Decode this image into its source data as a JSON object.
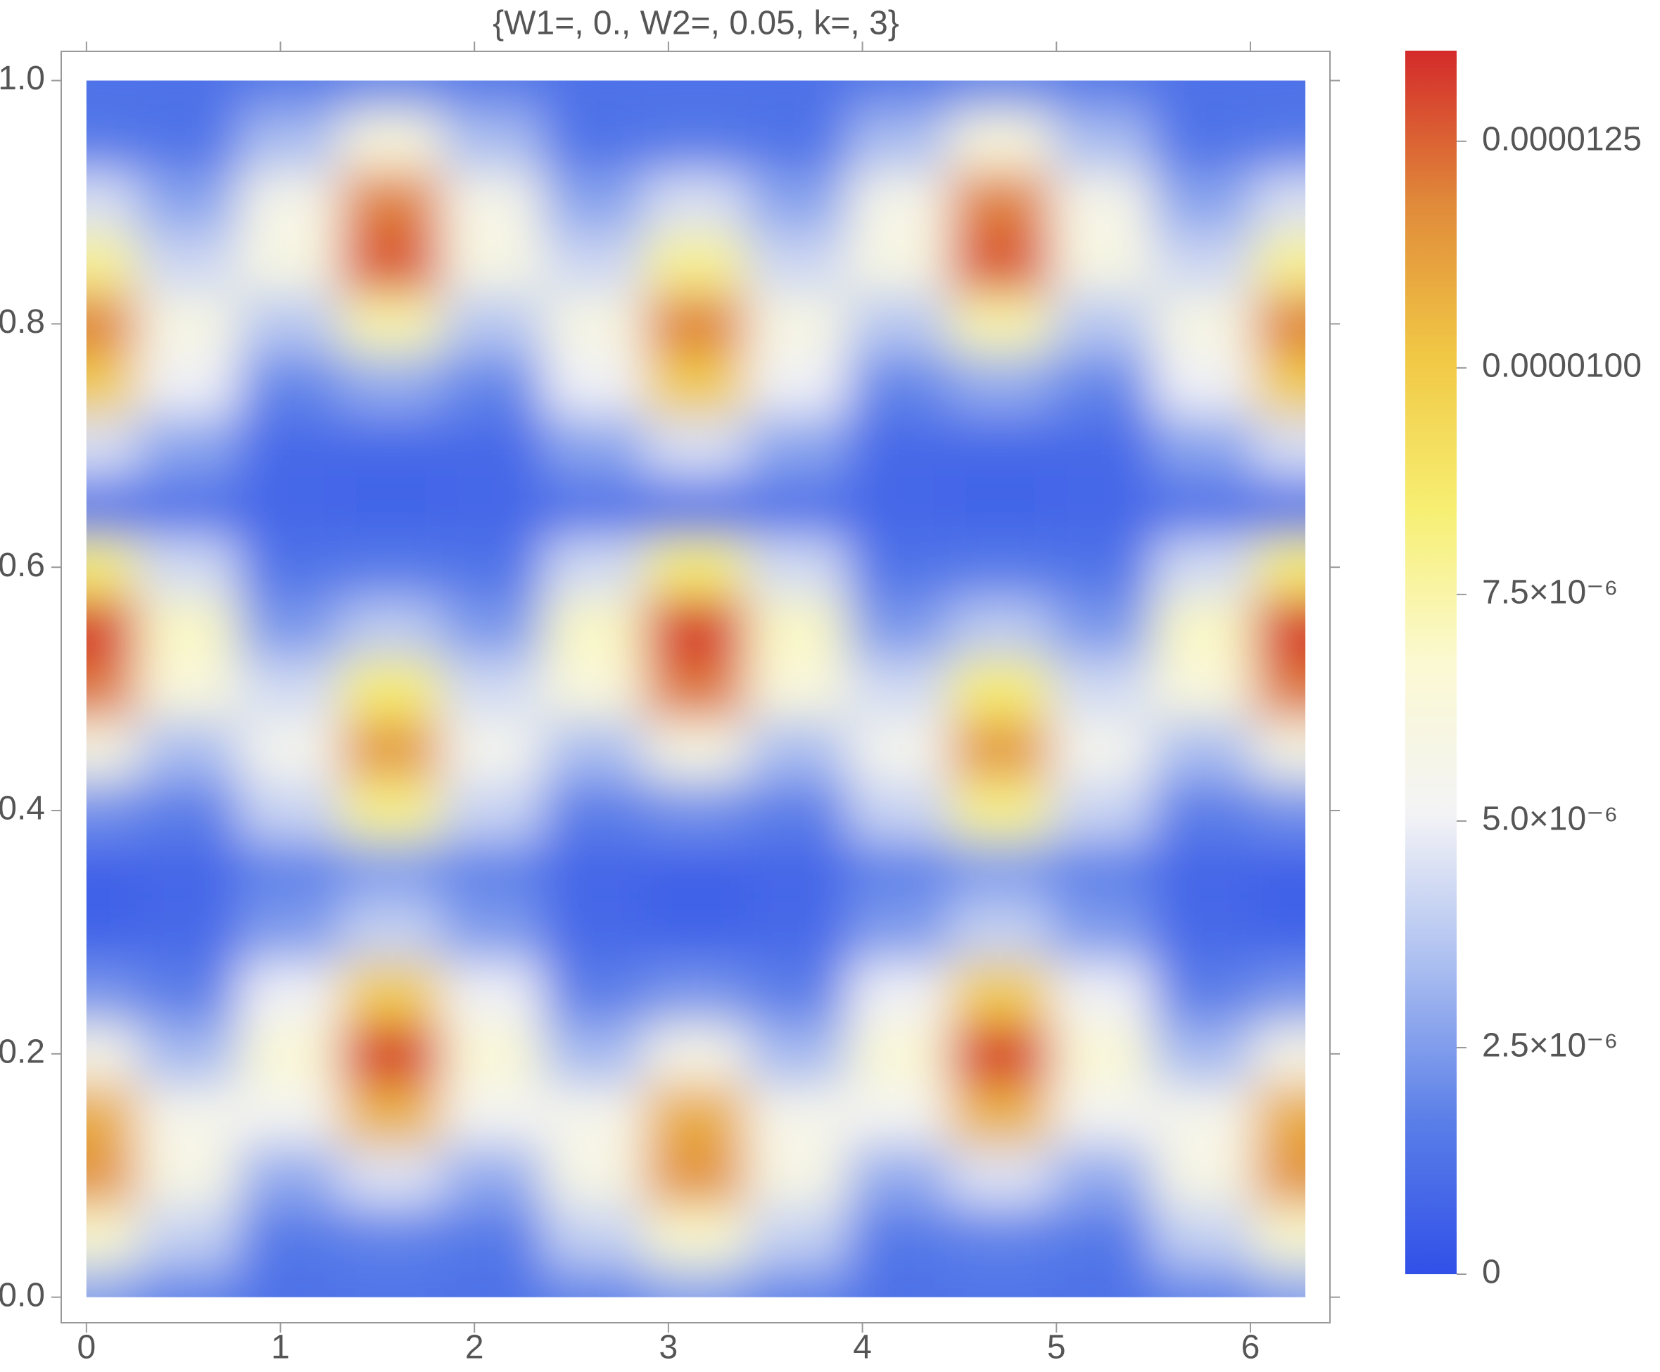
{
  "chart_data": {
    "type": "heatmap",
    "title": "{W1=, 0., W2=, 0.05, k=, 3}",
    "x": [
      0,
      0.5236,
      1.0472,
      1.5708,
      2.0944,
      2.618,
      3.1416,
      3.6652,
      4.1888,
      4.7124,
      5.236,
      5.7596,
      6.2832
    ],
    "y": [
      0,
      0.05,
      0.1,
      0.15,
      0.2,
      0.25,
      0.3,
      0.35,
      0.4,
      0.45,
      0.5,
      0.55,
      0.6,
      0.65,
      0.7,
      0.75,
      0.8,
      0.85,
      0.9,
      0.95,
      1.0
    ],
    "z": [
      [
        2.7e-06,
        1.9e-06,
        1.2e-06,
        1.3e-06,
        1.2e-06,
        1.9e-06,
        2.7e-06,
        1.9e-06,
        1.2e-06,
        1.3e-06,
        1.2e-06,
        1.9e-06,
        2.7e-06
      ],
      [
        6.8e-06,
        4e-06,
        1.5e-06,
        1.8e-06,
        1.5e-06,
        4e-06,
        6.8e-06,
        4e-06,
        1.5e-06,
        1.8e-06,
        1.5e-06,
        4e-06,
        6.8e-06
      ],
      [
        1.16e-05,
        5.9e-06,
        2.9e-06,
        4.6e-06,
        2.9e-06,
        5.9e-06,
        1.16e-05,
        5.9e-06,
        2.9e-06,
        4.6e-06,
        2.9e-06,
        5.9e-06,
        1.16e-05
      ],
      [
        1.09e-05,
        5.6e-06,
        5.3e-06,
        1.07e-05,
        5.3e-06,
        5.6e-06,
        1.09e-05,
        5.6e-06,
        5.3e-06,
        1.07e-05,
        5.3e-06,
        5.6e-06,
        1.09e-05
      ],
      [
        5.7e-06,
        3.3e-06,
        6.6e-06,
        1.33e-05,
        6.6e-06,
        3.3e-06,
        5.7e-06,
        3.3e-06,
        6.6e-06,
        1.33e-05,
        6.6e-06,
        3.3e-06,
        5.7e-06
      ],
      [
        2.3e-06,
        1.7e-06,
        5e-06,
        9.9e-06,
        5e-06,
        1.7e-06,
        2.3e-06,
        1.7e-06,
        5e-06,
        9.9e-06,
        5e-06,
        1.7e-06,
        2.3e-06
      ],
      [
        7e-07,
        9e-07,
        2.5e-06,
        4e-06,
        2.5e-06,
        9e-07,
        7e-07,
        9e-07,
        2.5e-06,
        4e-06,
        2.5e-06,
        9e-07,
        7e-07
      ],
      [
        6e-07,
        8e-07,
        1.8e-06,
        2.5e-06,
        1.8e-06,
        8e-07,
        6e-07,
        8e-07,
        1.8e-06,
        2.5e-06,
        1.8e-06,
        8e-07,
        6e-07
      ],
      [
        2.2e-06,
        1.7e-06,
        4.1e-06,
        8e-06,
        4.1e-06,
        1.7e-06,
        2.2e-06,
        1.7e-06,
        4.1e-06,
        8e-06,
        4.1e-06,
        1.7e-06,
        2.2e-06
      ],
      [
        6e-06,
        3.4e-06,
        5.5e-06,
        1.15e-05,
        5.5e-06,
        3.4e-06,
        6e-06,
        3.4e-06,
        5.5e-06,
        1.15e-05,
        5.5e-06,
        3.4e-06,
        6e-06
      ],
      [
        1.22e-05,
        6.3e-06,
        4.3e-06,
        8.5e-06,
        4.3e-06,
        6.3e-06,
        1.22e-05,
        6.3e-06,
        4.3e-06,
        8.5e-06,
        4.3e-06,
        6.3e-06,
        1.22e-05
      ],
      [
        1.34e-05,
        7e-06,
        2.4e-06,
        3.8e-06,
        2.4e-06,
        7e-06,
        1.34e-05,
        7e-06,
        2.4e-06,
        3.8e-06,
        2.4e-06,
        7e-06,
        1.34e-05
      ],
      [
        8.4e-06,
        4.3e-06,
        1.3e-06,
        1.5e-06,
        1.3e-06,
        4.3e-06,
        8.4e-06,
        4.3e-06,
        1.3e-06,
        1.5e-06,
        1.3e-06,
        4.3e-06,
        8.4e-06
      ],
      [
        1.2e-06,
        1.2e-06,
        8e-07,
        7e-07,
        8e-07,
        1.2e-06,
        1.2e-06,
        1.2e-06,
        8e-07,
        7e-07,
        8e-07,
        1.2e-06,
        1.2e-06
      ],
      [
        4.5e-06,
        2.7e-06,
        9e-07,
        9e-07,
        9e-07,
        2.7e-06,
        4.5e-06,
        2.7e-06,
        9e-07,
        9e-07,
        9e-07,
        2.7e-06,
        4.5e-06
      ],
      [
        1e-05,
        5e-06,
        1.9e-06,
        2.9e-06,
        1.9e-06,
        5e-06,
        1e-05,
        5e-06,
        1.9e-06,
        2.9e-06,
        1.9e-06,
        5e-06,
        1e-05
      ],
      [
        1.2e-05,
        6e-06,
        3.7e-06,
        7.4e-06,
        3.7e-06,
        6e-06,
        1.2e-05,
        6e-06,
        3.7e-06,
        7.4e-06,
        3.7e-06,
        6e-06,
        1.2e-05
      ],
      [
        7.9e-06,
        4.2e-06,
        6e-06,
        1.28e-05,
        6e-06,
        4.2e-06,
        7.9e-06,
        4.2e-06,
        6e-06,
        1.28e-05,
        6e-06,
        4.2e-06,
        7.9e-06
      ],
      [
        4.5e-06,
        2.7e-06,
        5.7e-06,
        1.2e-05,
        5.7e-06,
        2.7e-06,
        4.5e-06,
        2.7e-06,
        5.7e-06,
        1.2e-05,
        5.7e-06,
        2.7e-06,
        4.5e-06
      ],
      [
        1.5e-06,
        1.3e-06,
        3.4e-06,
        6.3e-06,
        3.4e-06,
        1.3e-06,
        1.5e-06,
        1.3e-06,
        3.4e-06,
        6.3e-06,
        3.4e-06,
        1.3e-06,
        1.5e-06
      ],
      [
        1.2e-06,
        1.2e-06,
        1.6e-06,
        2e-06,
        1.6e-06,
        1.2e-06,
        1.2e-06,
        1.2e-06,
        1.6e-06,
        2e-06,
        1.6e-06,
        1.2e-06,
        1.2e-06
      ]
    ],
    "xlim": [
      -0.13,
      6.41
    ],
    "ylim": [
      -0.021,
      1.024
    ],
    "xticks": [
      0,
      1,
      2,
      3,
      4,
      5,
      6
    ],
    "yticks": [
      {
        "value": 0,
        "label": "0.0"
      },
      0.2,
      0.4,
      0.6,
      0.8,
      {
        "value": 1,
        "label": "1.0"
      }
    ],
    "zlim": [
      0,
      1.35e-05
    ],
    "zticks": [
      0,
      {
        "value": 2.5e-06,
        "label": "2.5×10⁻⁶"
      },
      {
        "value": 5e-06,
        "label": "5.0×10⁻⁶"
      },
      {
        "value": 7.5e-06,
        "label": "7.5×10⁻⁶"
      },
      {
        "value": 1e-05,
        "label": "0.0000100"
      },
      {
        "value": 1.25e-05,
        "label": "0.0000125"
      }
    ],
    "colormap": [
      "#3050e8",
      "#5a7ee8",
      "#a9bdf0",
      "#f3f3f6",
      "#fbf9d2",
      "#f7ef72",
      "#f1c845",
      "#e08a3a",
      "#d42a2a"
    ]
  }
}
